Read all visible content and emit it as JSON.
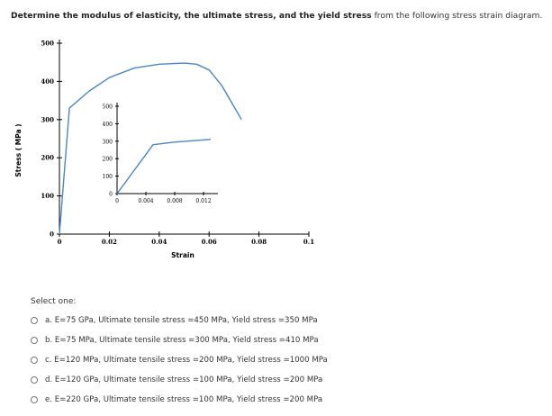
{
  "question": {
    "bold_text": "Determine the modulus of elasticity, the ultimate stress, and the yield stress",
    "rest_text": " from the following stress strain diagram."
  },
  "chart_data": [
    {
      "type": "line",
      "xlabel": "Strain",
      "ylabel": "Stress ( MPa )",
      "xlim": [
        0,
        0.1
      ],
      "ylim": [
        0,
        500
      ],
      "x_ticks": [
        "0",
        "0.02",
        "0.04",
        "0.06",
        "0.08",
        "0.1"
      ],
      "y_ticks": [
        "0",
        "100",
        "200",
        "300",
        "400",
        "500"
      ],
      "series": [
        {
          "color": "#4a86c8",
          "x": [
            0,
            0.004,
            0.012,
            0.02,
            0.03,
            0.04,
            0.05,
            0.055,
            0.06,
            0.065,
            0.073
          ],
          "y": [
            0,
            330,
            375,
            410,
            435,
            445,
            448,
            445,
            430,
            390,
            300
          ]
        }
      ]
    },
    {
      "type": "line",
      "xlim": [
        0,
        0.014
      ],
      "ylim": [
        0,
        500
      ],
      "x_ticks": [
        "0",
        "0.004",
        "0.008",
        "0.012"
      ],
      "y_ticks": [
        "0",
        "100",
        "200",
        "300",
        "400",
        "500"
      ],
      "series": [
        {
          "color": "#4a86c8",
          "x": [
            0,
            0.005,
            0.008,
            0.013
          ],
          "y": [
            0,
            280,
            295,
            310
          ]
        }
      ]
    }
  ],
  "select_one": "Select one:",
  "options": [
    "a. E=75 GPa, Ultimate tensile stress =450 MPa, Yield stress =350 MPa",
    "b. E=75 MPa, Ultimate tensile stress =300 MPa, Yield stress =410 MPa",
    "c. E=120 MPa, Ultimate tensile stress =200 MPa, Yield stress =1000 MPa",
    "d. E=120 GPa, Ultimate tensile stress =100 MPa, Yield stress =200 MPa",
    "e. E=220 GPa, Ultimate tensile stress =100 MPa, Yield stress =200 MPa"
  ]
}
